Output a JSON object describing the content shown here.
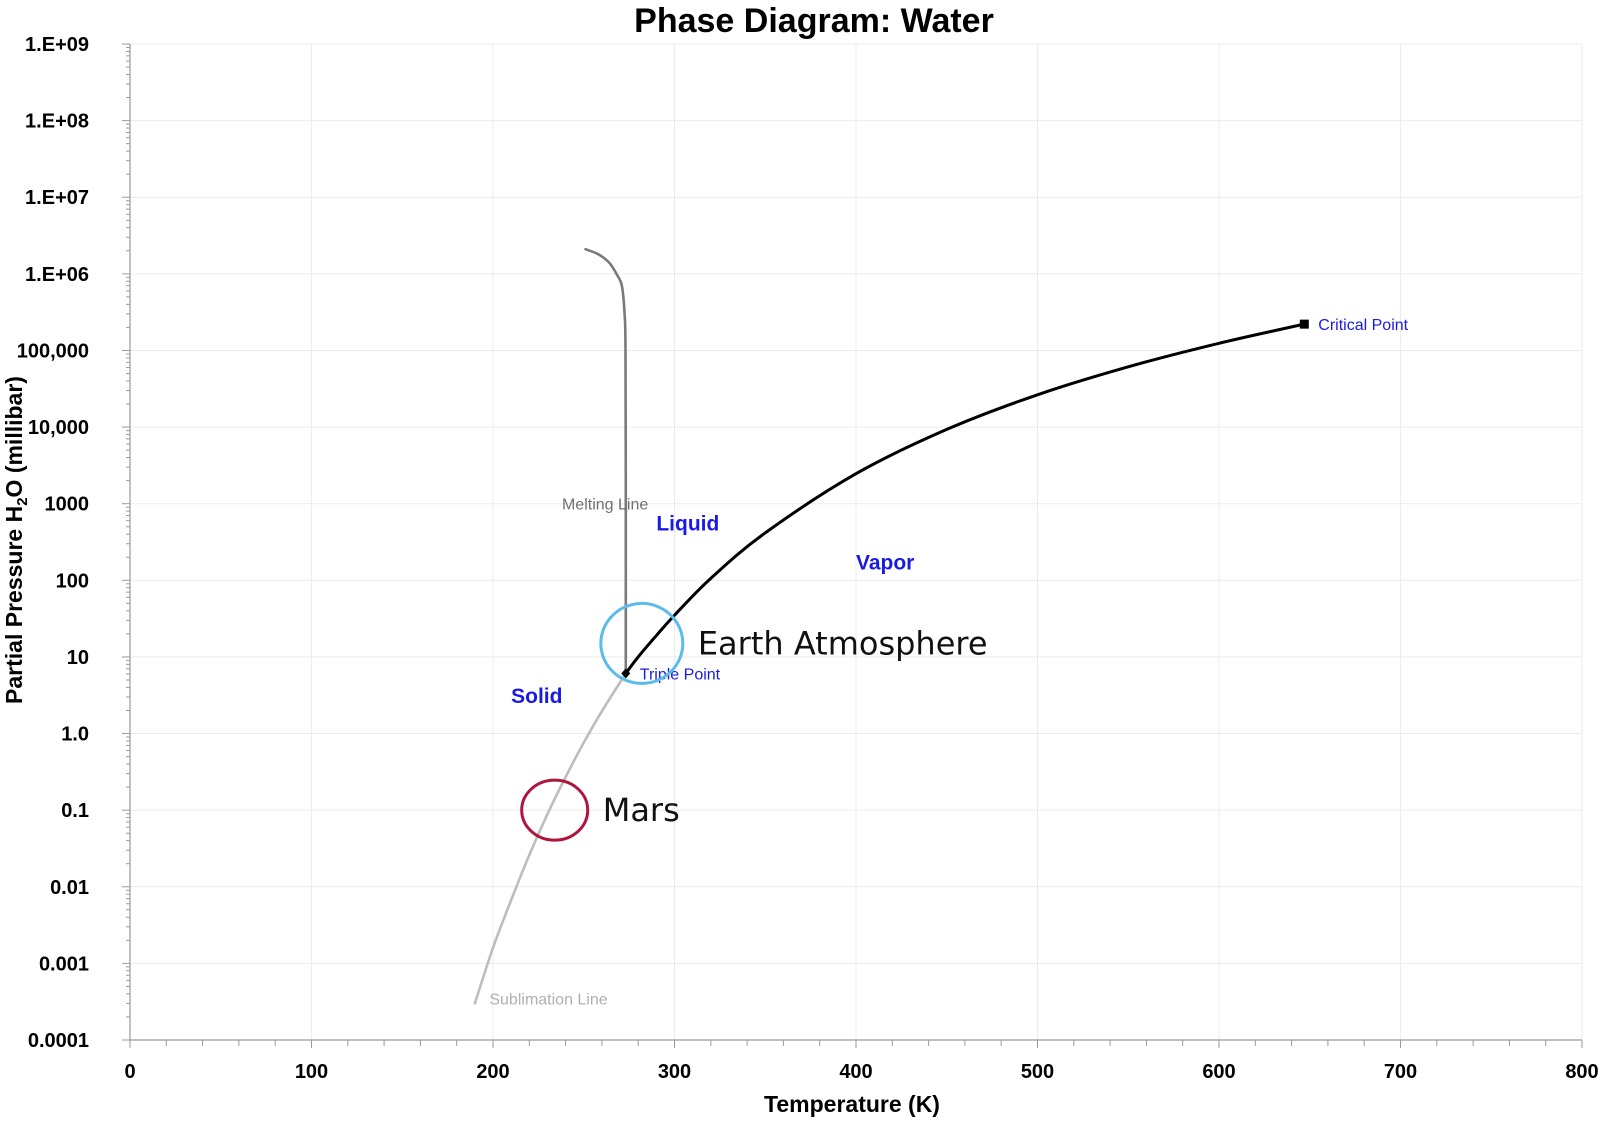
{
  "chart_data": {
    "type": "line",
    "title": "Phase Diagram: Water",
    "xlabel": "Temperature (K)",
    "ylabel_parts": [
      "Partial Pressure H",
      "2",
      "O (millibar)"
    ],
    "xlim": [
      0,
      800
    ],
    "ylim": [
      0.0001,
      1000000000
    ],
    "yscale": "log",
    "grid": true,
    "x_ticks": [
      0,
      100,
      200,
      300,
      400,
      500,
      600,
      700,
      800
    ],
    "x_tick_labels": [
      "0",
      "100",
      "200",
      "300",
      "400",
      "500",
      "600",
      "700",
      "800"
    ],
    "y_ticks": [
      0.0001,
      0.001,
      0.01,
      0.1,
      1,
      10,
      100,
      1000,
      10000,
      100000,
      1000000,
      10000000,
      100000000,
      1000000000
    ],
    "y_tick_labels": [
      "0.0001",
      "0.001",
      "0.01",
      "0.1",
      "1.0",
      "10",
      "100",
      "1000",
      "10,000",
      "100,000",
      "1.E+06",
      "1.E+07",
      "1.E+08",
      "1.E+09"
    ],
    "series": [
      {
        "name": "Sublimation Line",
        "color": "#bdbdbd",
        "x": [
          190,
          200,
          210,
          220,
          230,
          240,
          250,
          260,
          273.16
        ],
        "y": [
          0.0003,
          0.0016,
          0.0067,
          0.026,
          0.089,
          0.27,
          0.76,
          1.96,
          6.1
        ]
      },
      {
        "name": "Melting Line",
        "color": "#7a7a7a",
        "x": [
          273.16,
          273.16,
          273,
          272.5,
          271,
          268,
          264,
          258,
          251
        ],
        "y": [
          6.1,
          1000,
          100000,
          300000,
          700000,
          1000000,
          1400000,
          1800000,
          2100000
        ]
      },
      {
        "name": "Vaporization Line",
        "color": "#000000",
        "x": [
          273.16,
          280,
          290,
          300,
          320,
          350,
          400,
          450,
          500,
          550,
          600,
          647
        ],
        "y": [
          6.1,
          10,
          19,
          35,
          106,
          416,
          2460,
          9320,
          26400,
          61200,
          124000,
          220600
        ]
      }
    ],
    "points": [
      {
        "name": "Triple Point",
        "x": 273.16,
        "y": 6.1,
        "marker": "diamond",
        "color": "#000000",
        "label_color": "#1a1ae6"
      },
      {
        "name": "Critical Point",
        "x": 647,
        "y": 220600,
        "marker": "square",
        "color": "#000000",
        "label_color": "#1a1ae6"
      }
    ],
    "line_labels": [
      {
        "text": "Melting Line",
        "x": 238,
        "y": 1000,
        "color": "#707070"
      },
      {
        "text": "Sublimation Line",
        "x": 198,
        "y": 0.00035,
        "color": "#b0b0b0"
      }
    ],
    "regions": [
      {
        "text": "Liquid",
        "x": 290,
        "y": 550
      },
      {
        "text": "Vapor",
        "x": 400,
        "y": 170
      },
      {
        "text": "Solid",
        "x": 210,
        "y": 3.1
      }
    ],
    "annotations": [
      {
        "text": "Earth Atmosphere",
        "x": 282,
        "y": 15,
        "color": "#5bbbea"
      },
      {
        "text": "Mars",
        "x": 234,
        "y": 0.1,
        "color": "#b0153c"
      }
    ]
  }
}
